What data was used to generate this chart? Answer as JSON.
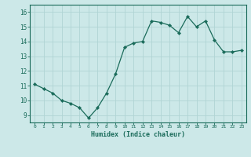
{
  "x": [
    0,
    1,
    2,
    3,
    4,
    5,
    6,
    7,
    8,
    9,
    10,
    11,
    12,
    13,
    14,
    15,
    16,
    17,
    18,
    19,
    20,
    21,
    22,
    23
  ],
  "y": [
    11.1,
    10.8,
    10.5,
    10.0,
    9.8,
    9.5,
    8.8,
    9.5,
    10.5,
    11.8,
    13.6,
    13.9,
    14.0,
    15.4,
    15.3,
    15.1,
    14.6,
    15.7,
    15.0,
    15.4,
    14.1,
    13.3,
    13.3,
    13.4
  ],
  "xlim": [
    -0.5,
    23.5
  ],
  "ylim": [
    8.5,
    16.5
  ],
  "yticks": [
    9,
    10,
    11,
    12,
    13,
    14,
    15,
    16
  ],
  "xticks": [
    0,
    1,
    2,
    3,
    4,
    5,
    6,
    7,
    8,
    9,
    10,
    11,
    12,
    13,
    14,
    15,
    16,
    17,
    18,
    19,
    20,
    21,
    22,
    23
  ],
  "xlabel": "Humidex (Indice chaleur)",
  "line_color": "#1a6b5a",
  "marker": "D",
  "marker_size": 2.2,
  "bg_color": "#cce8e8",
  "grid_color": "#b0d4d4",
  "text_color": "#1a6b5a",
  "tick_color": "#1a6b5a",
  "spine_color": "#1a6b5a"
}
